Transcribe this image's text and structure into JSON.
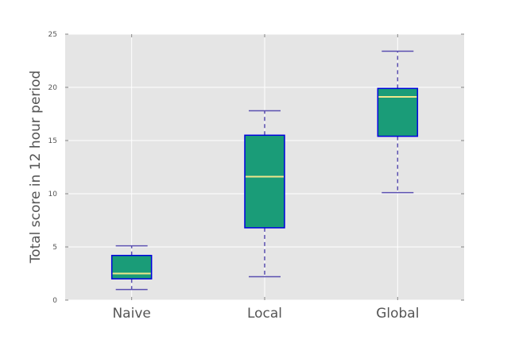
{
  "chart_data": {
    "type": "box",
    "title": "",
    "xlabel": "",
    "ylabel": "Total score in 12 hour period",
    "ylim": [
      0,
      25
    ],
    "yticks": [
      0,
      5,
      10,
      15,
      20,
      25
    ],
    "grid": true,
    "categories": [
      "Naive",
      "Local",
      "Global"
    ],
    "boxes": [
      {
        "category": "Naive",
        "whisker_low": 1.0,
        "q1": 2.0,
        "median": 2.5,
        "q3": 4.2,
        "whisker_high": 5.1
      },
      {
        "category": "Local",
        "whisker_low": 2.2,
        "q1": 6.8,
        "median": 11.6,
        "q3": 15.5,
        "whisker_high": 17.8
      },
      {
        "category": "Global",
        "whisker_low": 10.1,
        "q1": 15.4,
        "median": 19.1,
        "q3": 19.9,
        "whisker_high": 23.4
      }
    ],
    "colors": {
      "plot_background": "#e5e5e5",
      "grid": "#ffffff",
      "box_fill": "#1a9c78",
      "box_edge": "#0000dd",
      "median": "#f0e68c",
      "whisker": "#5a4fb0",
      "text": "#555555"
    }
  }
}
